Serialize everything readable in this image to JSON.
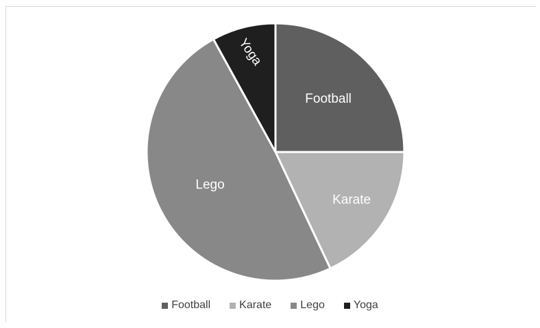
{
  "chart_data": {
    "type": "pie",
    "title": "",
    "legend_position": "bottom",
    "slices": [
      {
        "label": "Football",
        "value": 25,
        "color": "#5f5f5f",
        "label_color": "#ffffff"
      },
      {
        "label": "Karate",
        "value": 18,
        "color": "#b2b2b2",
        "label_color": "#ffffff"
      },
      {
        "label": "Lego",
        "value": 49,
        "color": "#888888",
        "label_color": "#ffffff"
      },
      {
        "label": "Yoga",
        "value": 8,
        "color": "#1f1f1f",
        "label_color": "#ffffff"
      }
    ]
  }
}
